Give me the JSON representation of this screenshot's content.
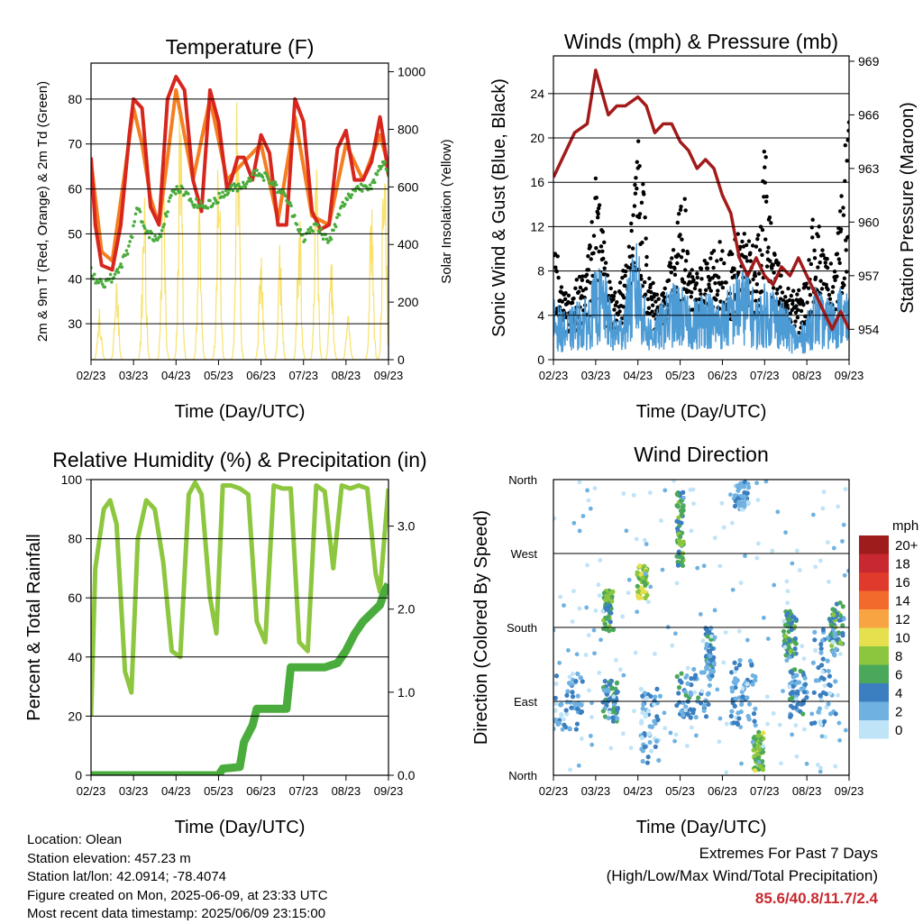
{
  "colors": {
    "temp_red": "#d7261e",
    "temp_orange": "#f57e20",
    "dewpoint_green": "#4aac3c",
    "solar_yellow": "#f8e16c",
    "gust_black": "#000000",
    "wind_blue": "#4d9bd5",
    "pressure_maroon": "#a31a1a",
    "rh_lightgreen": "#8dc63f",
    "precip_green": "#4aac3c"
  },
  "chart_data": [
    {
      "id": "temperature",
      "type": "line",
      "title": "Temperature (F)",
      "xlabel": "Time (Day/UTC)",
      "ylabel": "2m & 9m T (Red, Orange) & 2m Td (Green)",
      "y2label": "Solar Insolation (Yellow)",
      "x_ticks": [
        "02/23",
        "03/23",
        "04/23",
        "05/23",
        "06/23",
        "07/23",
        "08/23",
        "09/23"
      ],
      "xlim": [
        0,
        7
      ],
      "ylim": [
        22,
        88
      ],
      "y_ticks": [
        30,
        40,
        50,
        60,
        70,
        80
      ],
      "y2lim": [
        0,
        1030
      ],
      "y2_ticks": [
        0,
        200,
        400,
        600,
        800,
        1000
      ],
      "grid": true,
      "series": [
        {
          "key": "temp_2m",
          "axis": "y",
          "style": "line",
          "x": [
            0,
            0.1,
            0.25,
            0.5,
            0.7,
            0.9,
            1,
            1.2,
            1.4,
            1.6,
            1.8,
            2,
            2.2,
            2.4,
            2.6,
            2.8,
            3,
            3.2,
            3.3,
            3.45,
            3.6,
            3.8,
            4,
            4.2,
            4.4,
            4.6,
            4.8,
            5,
            5.2,
            5.4,
            5.6,
            5.8,
            6,
            6.2,
            6.4,
            6.6,
            6.8,
            6.9,
            7
          ],
          "y": [
            67,
            52,
            43,
            42,
            52,
            72,
            80,
            78,
            56,
            52,
            80,
            85,
            82,
            62,
            55,
            82,
            75,
            60,
            62,
            67,
            67,
            62,
            72,
            68,
            52,
            52,
            80,
            75,
            55,
            51,
            52,
            69,
            73,
            62,
            62,
            66,
            76,
            70,
            63
          ]
        },
        {
          "key": "temp_9m",
          "axis": "y",
          "style": "line",
          "x": [
            0,
            0.25,
            0.5,
            0.8,
            1,
            1.2,
            1.4,
            1.6,
            2,
            2.4,
            2.8,
            3.2,
            3.6,
            4,
            4.4,
            4.8,
            5.2,
            5.6,
            6,
            6.4,
            6.8,
            7
          ],
          "y": [
            66,
            46,
            44,
            64,
            78,
            70,
            58,
            52,
            82,
            62,
            80,
            62,
            66,
            70,
            53,
            76,
            54,
            52,
            70,
            62,
            72,
            65
          ]
        },
        {
          "key": "dewpoint_2m",
          "axis": "y",
          "style": "dots",
          "x": [
            0,
            0.1,
            0.3,
            0.6,
            0.9,
            1.1,
            1.3,
            1.6,
            1.9,
            2.1,
            2.4,
            2.7,
            3,
            3.3,
            3.6,
            3.9,
            4.2,
            4.6,
            5,
            5.3,
            5.6,
            5.9,
            6.2,
            6.6,
            6.9,
            7
          ],
          "y": [
            42,
            40,
            39,
            41,
            47,
            56,
            50,
            49,
            59,
            60,
            57,
            56,
            58,
            60,
            61,
            64,
            62,
            58,
            49,
            52,
            48,
            56,
            60,
            61,
            66,
            62
          ]
        },
        {
          "key": "solar",
          "axis": "y2",
          "style": "spikes",
          "peak_x": [
            0.2,
            0.6,
            1.25,
            1.7,
            2.1,
            2.55,
            3.0,
            3.45,
            4.0,
            4.45,
            4.9,
            5.3,
            5.65,
            6.05,
            6.6,
            6.9
          ],
          "peak_y": [
            180,
            330,
            620,
            680,
            1000,
            560,
            820,
            1000,
            430,
            420,
            560,
            790,
            400,
            170,
            580,
            960
          ]
        }
      ]
    },
    {
      "id": "winds",
      "type": "line",
      "title": "Winds (mph) & Pressure (mb)",
      "xlabel": "Time (Day/UTC)",
      "ylabel": "Sonic Wind & Gust (Blue, Black)",
      "y2label": "Station Pressure (Maroon)",
      "x_ticks": [
        "02/23",
        "03/23",
        "04/23",
        "05/23",
        "06/23",
        "07/23",
        "08/23",
        "09/23"
      ],
      "xlim": [
        0,
        7
      ],
      "ylim": [
        0,
        27.4
      ],
      "y_ticks": [
        0,
        4,
        8,
        12,
        16,
        20,
        24
      ],
      "y2lim": [
        952.3,
        969.3
      ],
      "y2_ticks": [
        954,
        957,
        960,
        963,
        966,
        969
      ],
      "grid": true,
      "series": [
        {
          "key": "wind",
          "axis": "y",
          "style": "band",
          "x": [
            0,
            0.3,
            0.6,
            0.8,
            1.0,
            1.2,
            1.4,
            1.6,
            1.8,
            2.0,
            2.2,
            2.4,
            2.6,
            2.8,
            3.0,
            3.2,
            3.4,
            3.6,
            3.8,
            4.0,
            4.2,
            4.4,
            4.6,
            4.8,
            5.0,
            5.2,
            5.4,
            5.6,
            5.8,
            6.0,
            6.2,
            6.4,
            6.6,
            6.8,
            7.0
          ],
          "y": [
            4,
            3,
            4,
            4,
            6,
            6,
            3,
            3,
            6,
            8,
            3,
            3,
            4,
            5,
            5,
            4,
            4,
            5,
            4,
            4,
            5,
            6,
            6,
            4,
            5,
            5,
            4,
            3,
            2,
            3,
            5,
            4,
            4,
            5,
            4
          ]
        },
        {
          "key": "gust",
          "axis": "y",
          "style": "dots",
          "x": [
            0,
            0.3,
            0.6,
            0.8,
            1.0,
            1.1,
            1.3,
            1.5,
            1.7,
            1.85,
            2.0,
            2.1,
            2.3,
            2.5,
            2.7,
            2.9,
            3.1,
            3.3,
            3.5,
            3.7,
            3.9,
            4.1,
            4.3,
            4.5,
            4.7,
            4.9,
            5.0,
            5.2,
            5.4,
            5.6,
            5.8,
            6.0,
            6.2,
            6.4,
            6.6,
            6.8,
            6.95
          ],
          "y": [
            9,
            5,
            6,
            7,
            14,
            11,
            6,
            5,
            7,
            12,
            18,
            14,
            6,
            5,
            6,
            10,
            12,
            6,
            7,
            8,
            9,
            7,
            9,
            10,
            9,
            9,
            17,
            8,
            7,
            5,
            5,
            6,
            12,
            8,
            7,
            11,
            18
          ]
        },
        {
          "key": "pressure",
          "axis": "y2",
          "style": "line",
          "x": [
            0,
            0.1,
            0.3,
            0.5,
            0.8,
            1.0,
            1.3,
            1.5,
            1.7,
            2.0,
            2.2,
            2.4,
            2.6,
            2.8,
            3.0,
            3.2,
            3.4,
            3.6,
            3.8,
            4.0,
            4.2,
            4.4,
            4.6,
            4.8,
            5.0,
            5.2,
            5.4,
            5.6,
            5.8,
            6.0,
            6.2,
            6.4,
            6.6,
            6.8,
            7.0
          ],
          "y": [
            962.5,
            963,
            964,
            965,
            965.5,
            968.5,
            966,
            966.5,
            966.5,
            967,
            966.5,
            965,
            965.5,
            965.5,
            964.5,
            964,
            963,
            963.5,
            963,
            961.5,
            960.5,
            958,
            957,
            958,
            957,
            956.5,
            957.5,
            957,
            958,
            957,
            956,
            955,
            954,
            955,
            954
          ]
        }
      ]
    },
    {
      "id": "humidity",
      "type": "line",
      "title": "Relative Humidity (%) & Precipitation (in)",
      "xlabel": "Time (Day/UTC)",
      "ylabel": "Percent & Total Rainfall",
      "x_ticks": [
        "02/23",
        "03/23",
        "04/23",
        "05/23",
        "06/23",
        "07/23",
        "08/23",
        "09/23"
      ],
      "xlim": [
        0,
        7
      ],
      "ylim": [
        0,
        100
      ],
      "y_ticks": [
        0,
        20,
        40,
        60,
        80,
        100
      ],
      "y2lim": [
        0,
        3.56
      ],
      "y2_ticks": [
        "0.0",
        "1.0",
        "2.0",
        "3.0"
      ],
      "grid": true,
      "series": [
        {
          "key": "rh",
          "axis": "y",
          "style": "line",
          "x": [
            0,
            0.1,
            0.3,
            0.45,
            0.6,
            0.8,
            0.95,
            1.1,
            1.3,
            1.5,
            1.7,
            1.9,
            2.1,
            2.3,
            2.45,
            2.6,
            2.8,
            2.95,
            3.1,
            3.3,
            3.5,
            3.7,
            3.9,
            4.1,
            4.3,
            4.5,
            4.7,
            4.9,
            5.1,
            5.3,
            5.5,
            5.7,
            5.9,
            6.1,
            6.3,
            6.5,
            6.7,
            6.8,
            6.9,
            7.0
          ],
          "y": [
            20,
            70,
            90,
            93,
            85,
            35,
            28,
            80,
            93,
            90,
            72,
            42,
            40,
            95,
            99,
            95,
            60,
            48,
            98,
            98,
            97,
            95,
            52,
            45,
            98,
            97,
            97,
            45,
            42,
            98,
            96,
            70,
            98,
            97,
            98,
            97,
            68,
            62,
            80,
            97
          ]
        },
        {
          "key": "rain",
          "axis": "y2",
          "style": "line",
          "x": [
            0,
            3.0,
            3.1,
            3.5,
            3.6,
            3.8,
            3.9,
            4.6,
            4.7,
            5.4,
            5.5,
            5.8,
            6.0,
            6.2,
            6.4,
            6.6,
            6.8,
            6.9,
            7.0
          ],
          "y": [
            0,
            0,
            0.08,
            0.1,
            0.4,
            0.6,
            0.8,
            0.8,
            1.3,
            1.3,
            1.3,
            1.35,
            1.5,
            1.7,
            1.85,
            1.95,
            2.05,
            2.2,
            2.3
          ]
        }
      ]
    },
    {
      "id": "direction",
      "type": "scatter",
      "title": "Wind Direction",
      "xlabel": "Time (Day/UTC)",
      "ylabel": "Direction (Colored By Speed)",
      "x_ticks": [
        "02/23",
        "03/23",
        "04/23",
        "05/23",
        "06/23",
        "07/23",
        "08/23",
        "09/23"
      ],
      "xlim": [
        0,
        7
      ],
      "ylim": [
        0,
        360
      ],
      "y_ticks": [
        "North",
        "East",
        "South",
        "West",
        "North"
      ],
      "grid": true,
      "colorbar": {
        "title": "mph",
        "labels": [
          "20+",
          "18",
          "16",
          "14",
          "12",
          "10",
          "8",
          "6",
          "4",
          "2",
          "0"
        ],
        "colors": [
          "#9e1c1c",
          "#c8282f",
          "#e03a2c",
          "#f26a2c",
          "#f8a443",
          "#e6e04e",
          "#8cc63f",
          "#4aa85a",
          "#3b7fc0",
          "#6fb2e2",
          "#bfe3f7"
        ]
      },
      "clusters": [
        {
          "x": 0.35,
          "y": 90,
          "dx": 0.35,
          "dy": 35,
          "s": 2
        },
        {
          "x": 1.3,
          "y": 200,
          "dx": 0.12,
          "dy": 25,
          "s": 6
        },
        {
          "x": 1.35,
          "y": 90,
          "dx": 0.18,
          "dy": 25,
          "s": 4
        },
        {
          "x": 2.1,
          "y": 235,
          "dx": 0.12,
          "dy": 20,
          "s": 8
        },
        {
          "x": 2.3,
          "y": 60,
          "dx": 0.25,
          "dy": 45,
          "s": 2
        },
        {
          "x": 3.0,
          "y": 300,
          "dx": 0.08,
          "dy": 45,
          "s": 5
        },
        {
          "x": 3.3,
          "y": 100,
          "dx": 0.4,
          "dy": 30,
          "s": 3
        },
        {
          "x": 3.7,
          "y": 150,
          "dx": 0.1,
          "dy": 30,
          "s": 3
        },
        {
          "x": 4.45,
          "y": 340,
          "dx": 0.18,
          "dy": 18,
          "s": 2
        },
        {
          "x": 4.85,
          "y": 30,
          "dx": 0.12,
          "dy": 25,
          "s": 7
        },
        {
          "x": 4.5,
          "y": 100,
          "dx": 0.3,
          "dy": 40,
          "s": 2
        },
        {
          "x": 5.6,
          "y": 170,
          "dx": 0.15,
          "dy": 30,
          "s": 5
        },
        {
          "x": 5.8,
          "y": 100,
          "dx": 0.2,
          "dy": 30,
          "s": 3
        },
        {
          "x": 6.7,
          "y": 180,
          "dx": 0.18,
          "dy": 30,
          "s": 5
        },
        {
          "x": 6.4,
          "y": 120,
          "dx": 0.3,
          "dy": 60,
          "s": 2
        }
      ]
    }
  ],
  "footer": {
    "location": "Location: Olean",
    "elevation": "Station elevation: 457.23 m",
    "latlon": "Station lat/lon: 42.0914; -78.4074",
    "created": "Figure created on Mon, 2025-06-09, at 23:33 UTC",
    "recent": "Most recent data timestamp: 2025/06/09 23:15:00",
    "extremes_title": "Extremes For Past 7 Days",
    "extremes_subtitle": "(High/Low/Max Wind/Total Precipitation)",
    "extremes_values": "85.6/40.8/11.7/2.4"
  }
}
